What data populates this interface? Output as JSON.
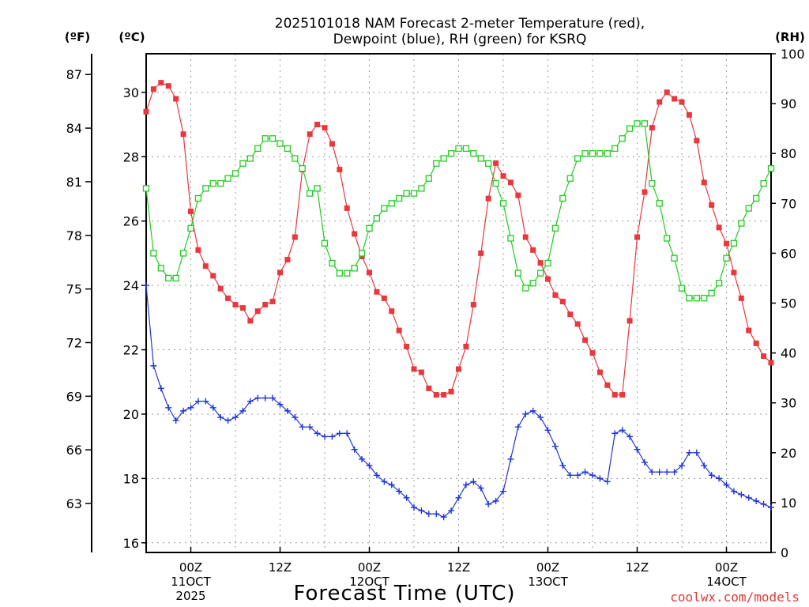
{
  "chart_data": {
    "type": "line",
    "title_line1": "2025101018 NAM Forecast 2-meter Temperature (red),",
    "title_line2": "Dewpoint (blue), RH (green) for KSRQ",
    "unit_labels": {
      "fahrenheit": "(ºF)",
      "celsius": "(ºC)",
      "rh": "(RH)"
    },
    "xlabel": "Forecast Time (UTC)",
    "credit": "coolwx.com/models",
    "x_unit": "forecast hour from 2025-10-10 18Z",
    "xlim": [
      0,
      84
    ],
    "celsius_axis": {
      "lim": [
        15.7,
        31.2
      ],
      "ticks": [
        16,
        18,
        20,
        22,
        24,
        26,
        28,
        30
      ]
    },
    "fahrenheit_axis": {
      "ticks": [
        63,
        66,
        69,
        72,
        75,
        78,
        81,
        84,
        87
      ]
    },
    "rh_axis": {
      "lim": [
        0,
        100
      ],
      "ticks": [
        0,
        10,
        20,
        30,
        40,
        50,
        60,
        70,
        80,
        90,
        100
      ]
    },
    "x_ticks": [
      {
        "hour": 6,
        "lines": [
          "00Z",
          "11OCT",
          "2025"
        ]
      },
      {
        "hour": 18,
        "lines": [
          "12Z"
        ]
      },
      {
        "hour": 30,
        "lines": [
          "00Z",
          "12OCT"
        ]
      },
      {
        "hour": 42,
        "lines": [
          "12Z"
        ]
      },
      {
        "hour": 54,
        "lines": [
          "00Z",
          "13OCT"
        ]
      },
      {
        "hour": 66,
        "lines": [
          "12Z"
        ]
      },
      {
        "hour": 78,
        "lines": [
          "00Z",
          "14OCT"
        ]
      }
    ],
    "grid_x_hours": [
      6,
      12,
      18,
      24,
      30,
      36,
      42,
      48,
      54,
      60,
      66,
      72,
      78
    ],
    "series": [
      {
        "name": "Temperature",
        "units": "°C",
        "axis": "celsius",
        "color": "#e8383d",
        "marker": "filled-square",
        "x": [
          0,
          1,
          2,
          3,
          4,
          5,
          6,
          7,
          8,
          9,
          10,
          11,
          12,
          13,
          14,
          15,
          16,
          17,
          18,
          19,
          20,
          21,
          22,
          23,
          24,
          25,
          26,
          27,
          28,
          29,
          30,
          31,
          32,
          33,
          34,
          35,
          36,
          37,
          38,
          39,
          40,
          41,
          42,
          43,
          44,
          45,
          46,
          47,
          48,
          49,
          50,
          51,
          52,
          53,
          54,
          55,
          56,
          57,
          58,
          59,
          60,
          61,
          62,
          63,
          64,
          65,
          66,
          67,
          68,
          69,
          70,
          71,
          72,
          73,
          74,
          75,
          76,
          77,
          78,
          79,
          80,
          81,
          82,
          83,
          84
        ],
        "values": [
          29.4,
          30.1,
          30.3,
          30.2,
          29.8,
          28.7,
          26.3,
          25.1,
          24.6,
          24.3,
          23.9,
          23.6,
          23.4,
          23.3,
          22.9,
          23.2,
          23.4,
          23.5,
          24.4,
          24.8,
          25.5,
          27.6,
          28.7,
          29.0,
          28.9,
          28.4,
          27.6,
          26.4,
          25.6,
          24.9,
          24.4,
          23.8,
          23.6,
          23.2,
          22.6,
          22.1,
          21.4,
          21.3,
          20.8,
          20.6,
          20.6,
          20.7,
          21.4,
          22.1,
          23.4,
          25.0,
          26.7,
          27.8,
          27.4,
          27.2,
          26.8,
          25.5,
          25.1,
          24.7,
          24.2,
          23.7,
          23.5,
          23.1,
          22.8,
          22.3,
          21.9,
          21.3,
          20.9,
          20.6,
          20.6,
          22.9,
          25.5,
          26.9,
          28.9,
          29.7,
          30.0,
          29.8,
          29.7,
          29.3,
          28.5,
          27.2,
          26.5,
          25.8,
          25.3,
          24.4,
          23.6,
          22.6,
          22.2,
          21.8,
          21.6
        ]
      },
      {
        "name": "Dewpoint",
        "units": "°C",
        "axis": "celsius",
        "color": "#2236d6",
        "marker": "plus",
        "x": [
          0,
          1,
          2,
          3,
          4,
          5,
          6,
          7,
          8,
          9,
          10,
          11,
          12,
          13,
          14,
          15,
          16,
          17,
          18,
          19,
          20,
          21,
          22,
          23,
          24,
          25,
          26,
          27,
          28,
          29,
          30,
          31,
          32,
          33,
          34,
          35,
          36,
          37,
          38,
          39,
          40,
          41,
          42,
          43,
          44,
          45,
          46,
          47,
          48,
          49,
          50,
          51,
          52,
          53,
          54,
          55,
          56,
          57,
          58,
          59,
          60,
          61,
          62,
          63,
          64,
          65,
          66,
          67,
          68,
          69,
          70,
          71,
          72,
          73,
          74,
          75,
          76,
          77,
          78,
          79,
          80,
          81,
          82,
          83,
          84
        ],
        "values": [
          24.0,
          21.5,
          20.8,
          20.2,
          19.8,
          20.1,
          20.2,
          20.4,
          20.4,
          20.2,
          19.9,
          19.8,
          19.9,
          20.1,
          20.4,
          20.5,
          20.5,
          20.5,
          20.3,
          20.1,
          19.9,
          19.6,
          19.6,
          19.4,
          19.3,
          19.3,
          19.4,
          19.4,
          18.9,
          18.6,
          18.4,
          18.1,
          17.9,
          17.8,
          17.6,
          17.4,
          17.1,
          17.0,
          16.9,
          16.9,
          16.8,
          17.0,
          17.4,
          17.8,
          17.9,
          17.7,
          17.2,
          17.3,
          17.6,
          18.6,
          19.6,
          20.0,
          20.1,
          19.9,
          19.5,
          19.0,
          18.4,
          18.1,
          18.1,
          18.2,
          18.1,
          18.0,
          17.9,
          19.4,
          19.5,
          19.3,
          18.9,
          18.5,
          18.2,
          18.2,
          18.2,
          18.2,
          18.4,
          18.8,
          18.8,
          18.4,
          18.1,
          18.0,
          17.8,
          17.6,
          17.5,
          17.4,
          17.3,
          17.2,
          17.1
        ]
      },
      {
        "name": "Relative Humidity",
        "units": "%",
        "axis": "rh",
        "color": "#22cc22",
        "marker": "open-square",
        "x": [
          0,
          1,
          2,
          3,
          4,
          5,
          6,
          7,
          8,
          9,
          10,
          11,
          12,
          13,
          14,
          15,
          16,
          17,
          18,
          19,
          20,
          21,
          22,
          23,
          24,
          25,
          26,
          27,
          28,
          29,
          30,
          31,
          32,
          33,
          34,
          35,
          36,
          37,
          38,
          39,
          40,
          41,
          42,
          43,
          44,
          45,
          46,
          47,
          48,
          49,
          50,
          51,
          52,
          53,
          54,
          55,
          56,
          57,
          58,
          59,
          60,
          61,
          62,
          63,
          64,
          65,
          66,
          67,
          68,
          69,
          70,
          71,
          72,
          73,
          74,
          75,
          76,
          77,
          78,
          79,
          80,
          81,
          82,
          83,
          84
        ],
        "values": [
          73,
          60,
          57,
          55,
          55,
          60,
          65,
          71,
          73,
          74,
          74,
          75,
          76,
          78,
          79,
          81,
          83,
          83,
          82,
          81,
          79,
          77,
          72,
          73,
          62,
          58,
          56,
          56,
          57,
          60,
          65,
          67,
          69,
          70,
          71,
          72,
          72,
          73,
          75,
          78,
          79,
          80,
          81,
          81,
          80,
          79,
          78,
          74,
          70,
          63,
          56,
          53,
          54,
          56,
          58,
          65,
          71,
          75,
          79,
          80,
          80,
          80,
          80,
          81,
          83,
          85,
          86,
          86,
          74,
          70,
          63,
          59,
          53,
          51,
          51,
          51,
          52,
          54,
          59,
          62,
          66,
          69,
          71,
          74,
          77
        ]
      }
    ]
  }
}
